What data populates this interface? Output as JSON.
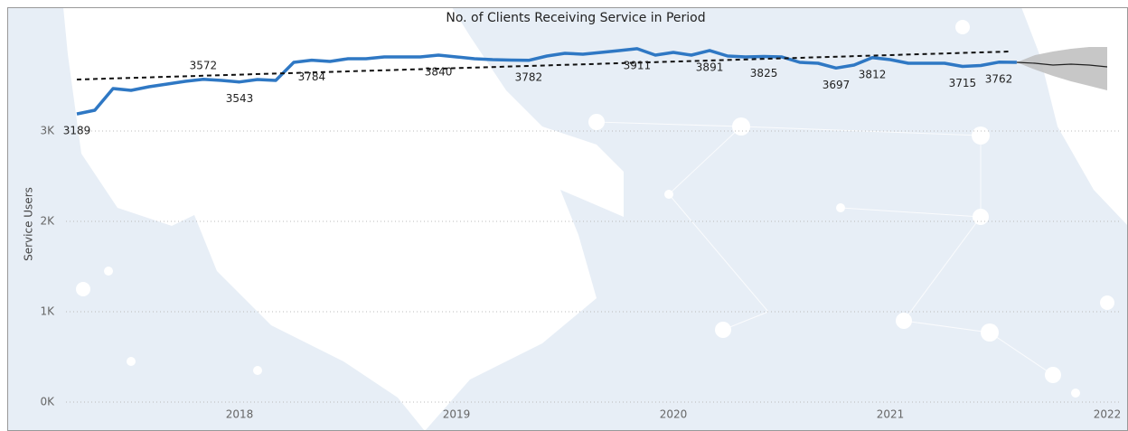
{
  "chart_data": {
    "type": "line",
    "title": "No. of Clients Receiving Service in Period",
    "y_label": "Service Users",
    "color": "#2f78c4",
    "x": [
      2017.25,
      2017.333,
      2017.417,
      2017.5,
      2017.583,
      2017.667,
      2017.75,
      2017.833,
      2017.917,
      2018.0,
      2018.083,
      2018.167,
      2018.25,
      2018.333,
      2018.417,
      2018.5,
      2018.583,
      2018.667,
      2018.75,
      2018.833,
      2018.917,
      2019.0,
      2019.083,
      2019.167,
      2019.25,
      2019.333,
      2019.417,
      2019.5,
      2019.583,
      2019.667,
      2019.75,
      2019.833,
      2019.917,
      2020.0,
      2020.083,
      2020.167,
      2020.25,
      2020.333,
      2020.417,
      2020.5,
      2020.583,
      2020.667,
      2020.75,
      2020.833,
      2020.917,
      2021.0,
      2021.083,
      2021.167,
      2021.25,
      2021.333,
      2021.417,
      2021.5,
      2021.583
    ],
    "values": [
      3189,
      3230,
      3470,
      3450,
      3490,
      3520,
      3550,
      3572,
      3560,
      3543,
      3570,
      3560,
      3760,
      3784,
      3770,
      3800,
      3800,
      3820,
      3820,
      3820,
      3840,
      3820,
      3800,
      3790,
      3785,
      3782,
      3830,
      3860,
      3850,
      3870,
      3890,
      3911,
      3840,
      3870,
      3840,
      3891,
      3830,
      3820,
      3825,
      3820,
      3760,
      3750,
      3697,
      3730,
      3812,
      3790,
      3750,
      3750,
      3750,
      3715,
      3725,
      3762,
      3760
    ],
    "value_labels": [
      "3189",
      null,
      null,
      null,
      null,
      null,
      null,
      "3572",
      null,
      "3543",
      null,
      null,
      null,
      "3784",
      null,
      null,
      null,
      null,
      null,
      null,
      "3840",
      null,
      null,
      null,
      null,
      "3782",
      null,
      null,
      null,
      null,
      null,
      "3911",
      null,
      null,
      null,
      "3891",
      null,
      null,
      "3825",
      null,
      null,
      null,
      "3697",
      null,
      "3812",
      null,
      null,
      null,
      null,
      "3715",
      null,
      "3762",
      null
    ],
    "trend": {
      "x": [
        2017.25,
        2021.55
      ],
      "values": [
        3570,
        3880
      ],
      "color": "#111111"
    },
    "forecast": {
      "x": [
        2021.583,
        2021.667,
        2021.75,
        2021.833,
        2021.917,
        2022.0
      ],
      "values": [
        3760,
        3750,
        3730,
        3740,
        3730,
        3710
      ],
      "upper": [
        3760,
        3840,
        3880,
        3910,
        3930,
        3930
      ],
      "lower": [
        3760,
        3680,
        3610,
        3550,
        3500,
        3450
      ],
      "color": "#222222",
      "band_color": "#bdbdbd"
    },
    "xlim": [
      2017.2,
      2022.06
    ],
    "xticks": [
      2018,
      2019,
      2020,
      2021,
      2022
    ],
    "ylim": [
      0,
      4350
    ],
    "yticks": [
      {
        "value": 0,
        "label": "0K"
      },
      {
        "value": 1000,
        "label": "1K"
      },
      {
        "value": 2000,
        "label": "2K"
      },
      {
        "value": 3000,
        "label": "3K"
      }
    ],
    "grid": true
  }
}
